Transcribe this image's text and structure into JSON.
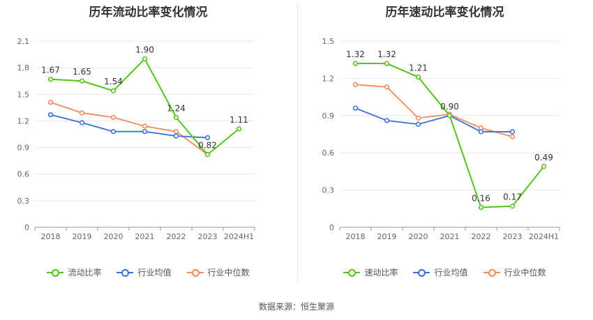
{
  "chart_data": [
    {
      "type": "line",
      "title": "历年流动比率变化情况",
      "categories": [
        "2018",
        "2019",
        "2020",
        "2021",
        "2022",
        "2023",
        "2024H1"
      ],
      "ylim": [
        0,
        2.1
      ],
      "yticks": [
        "0",
        "0.3",
        "0.6",
        "0.9",
        "1.2",
        "1.5",
        "1.8",
        "2.1"
      ],
      "grid": true,
      "legend_position": "bottom",
      "series": [
        {
          "name": "流动比率",
          "color": "#52c41a",
          "values": [
            1.67,
            1.65,
            1.54,
            1.9,
            1.24,
            0.82,
            1.11
          ],
          "labels": [
            "1.67",
            "1.65",
            "1.54",
            "1.90",
            "1.24",
            "0.82",
            "1.11"
          ]
        },
        {
          "name": "行业均值",
          "color": "#3a6fd8",
          "values": [
            1.27,
            1.18,
            1.08,
            1.08,
            1.03,
            1.01,
            null
          ]
        },
        {
          "name": "行业中位数",
          "color": "#f08a5d",
          "values": [
            1.41,
            1.29,
            1.24,
            1.14,
            1.08,
            0.82,
            null
          ]
        }
      ]
    },
    {
      "type": "line",
      "title": "历年速动比率变化情况",
      "categories": [
        "2018",
        "2019",
        "2020",
        "2021",
        "2022",
        "2023",
        "2024H1"
      ],
      "ylim": [
        0,
        1.5
      ],
      "yticks": [
        "0",
        "0.3",
        "0.6",
        "0.9",
        "1.2",
        "1.5"
      ],
      "grid": true,
      "legend_position": "bottom",
      "series": [
        {
          "name": "速动比率",
          "color": "#52c41a",
          "values": [
            1.32,
            1.32,
            1.21,
            0.9,
            0.16,
            0.17,
            0.49
          ],
          "labels": [
            "1.32",
            "1.32",
            "1.21",
            "0.90",
            "0.16",
            "0.17",
            "0.49"
          ]
        },
        {
          "name": "行业均值",
          "color": "#3a6fd8",
          "values": [
            0.96,
            0.86,
            0.83,
            0.9,
            0.77,
            0.77,
            null
          ]
        },
        {
          "name": "行业中位数",
          "color": "#f08a5d",
          "values": [
            1.15,
            1.13,
            0.88,
            0.91,
            0.8,
            0.73,
            null
          ]
        }
      ]
    }
  ],
  "footer": {
    "source": "数据来源：恒生聚源"
  }
}
